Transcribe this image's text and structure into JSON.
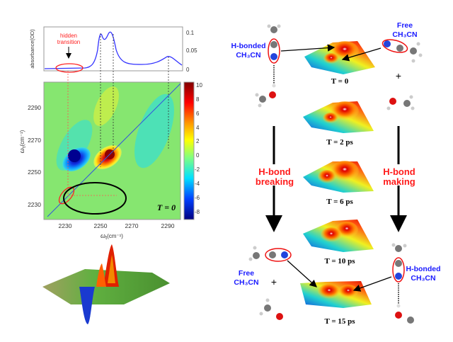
{
  "spectrum": {
    "ylabel": "absorbance(OD)",
    "yticks": [
      "0.1",
      "0.05",
      "0"
    ],
    "annotation": [
      "hidden",
      "transition"
    ]
  },
  "map2d": {
    "xlabel_sym": "ω",
    "xlabel_sub": "t",
    "xlabel_unit": "(cm⁻¹)",
    "ylabel_sym": "ω",
    "ylabel_sub": "τ",
    "ylabel_unit": "(cm⁻¹)",
    "xticks": [
      "2230",
      "2250",
      "2270",
      "2290"
    ],
    "yticks": [
      "2290",
      "2270",
      "2250",
      "2230"
    ],
    "time_label": "T = 0",
    "colorbar_ticks": [
      "10",
      "8",
      "6",
      "4",
      "2",
      "0",
      "-2",
      "-4",
      "-6",
      "-8"
    ]
  },
  "scheme": {
    "left_top_label": [
      "H-bonded",
      "CH₃CN"
    ],
    "right_top_label": [
      "Free",
      "CH₃CN"
    ],
    "left_bottom_label": [
      "Free",
      "CH₃CN"
    ],
    "right_bottom_label": [
      "H-bonded",
      "CH₃CN"
    ],
    "plus": "+",
    "left_process": [
      "H-bond",
      "breaking"
    ],
    "right_process": [
      "H-bond",
      "making"
    ],
    "surfaces": [
      "T = 0",
      "T = 2 ps",
      "T = 6 ps",
      "T = 10 ps",
      "T = 15 ps"
    ]
  },
  "colors": {
    "label_blue": "#1a1aff",
    "label_red": "#ff1a1a",
    "spectrum_line": "#3333ff"
  }
}
